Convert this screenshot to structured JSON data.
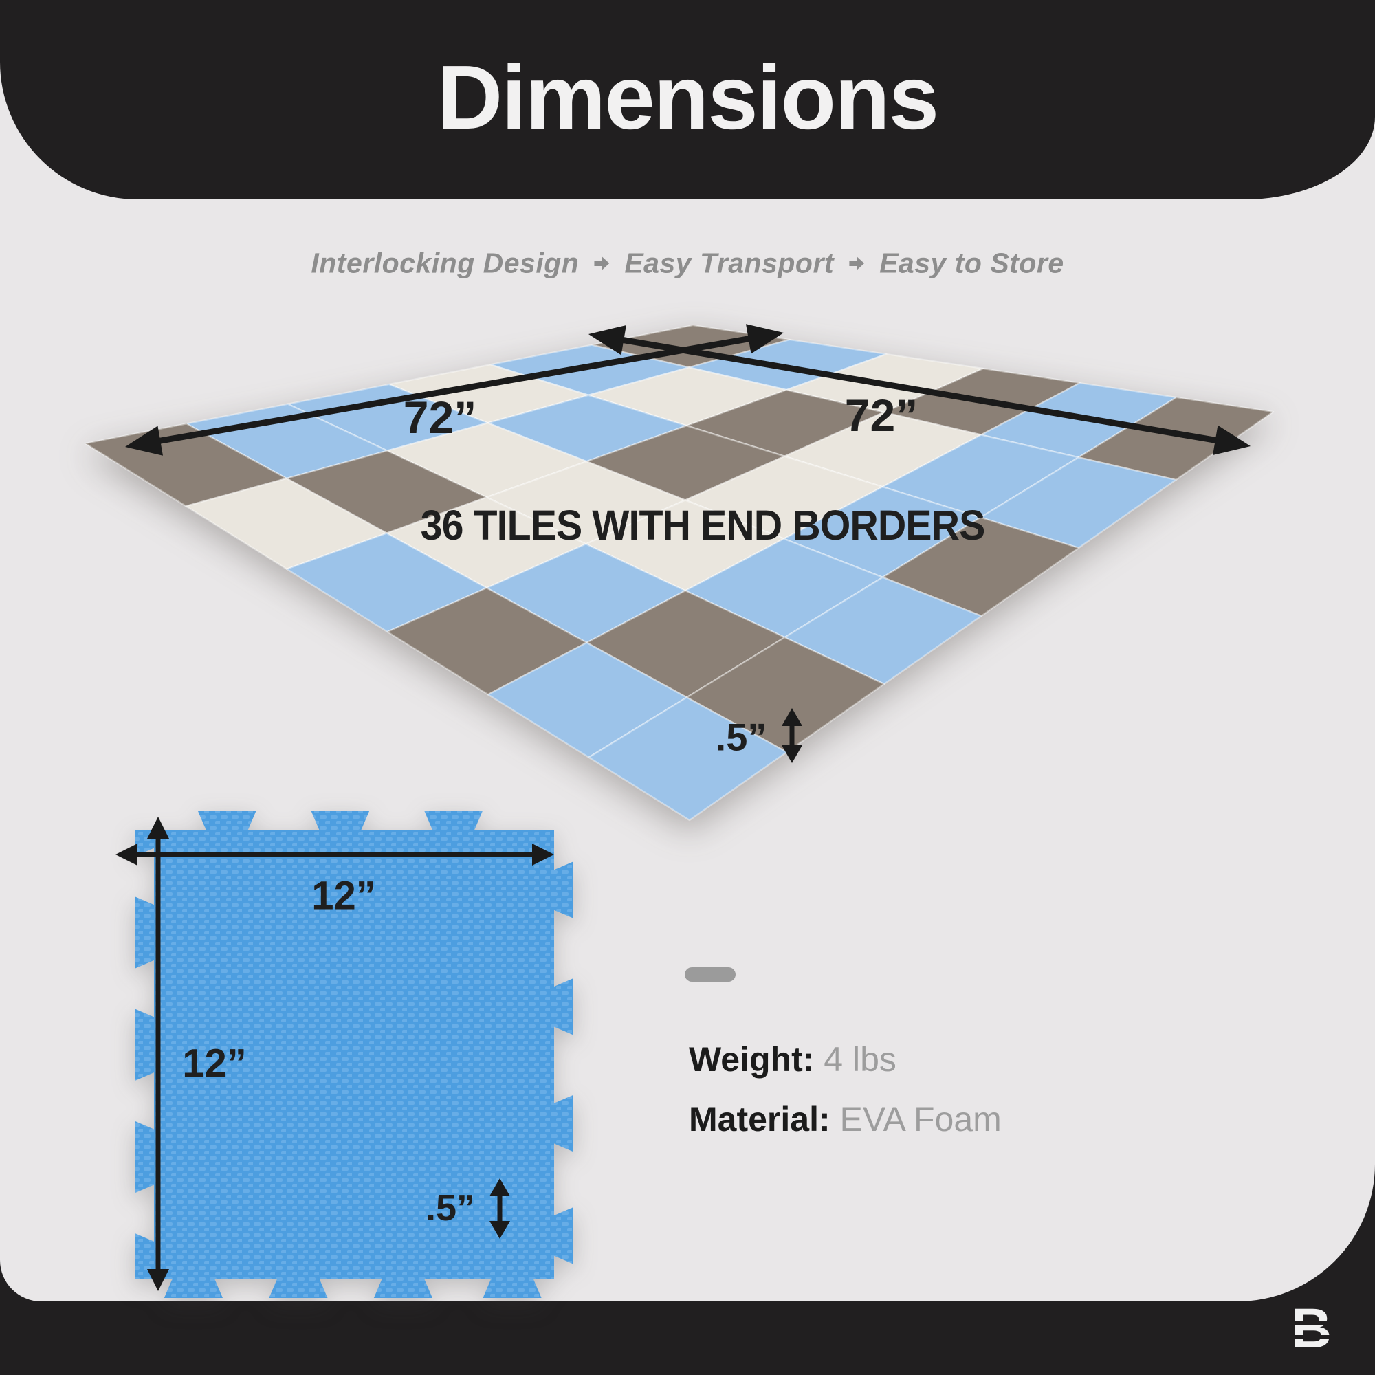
{
  "page": {
    "bg_dark": "#211f20",
    "bg_light": "#e9e7e8"
  },
  "header": {
    "title": "Dimensions"
  },
  "subtitle": {
    "items": [
      "Interlocking Design",
      "Easy Transport",
      "Easy to Store"
    ]
  },
  "mat": {
    "caption": "36 TILES WITH END BORDERS",
    "width_left": "72”",
    "width_right": "72”",
    "thickness": ".5”",
    "colors": {
      "blue": "#9cc3e9",
      "gray": "#8b8076",
      "white": "#eae6de",
      "seam": "rgba(255,255,255,0.4)"
    },
    "pattern": [
      [
        "G",
        "B",
        "W",
        "G",
        "B",
        "G"
      ],
      [
        "B",
        "W",
        "G",
        "W",
        "B",
        "B"
      ],
      [
        "W",
        "B",
        "G",
        "W",
        "B",
        "G"
      ],
      [
        "B",
        "W",
        "W",
        "W",
        "B",
        "B"
      ],
      [
        "B",
        "G",
        "W",
        "B",
        "G",
        "G"
      ],
      [
        "G",
        "W",
        "B",
        "G",
        "B",
        "B"
      ]
    ]
  },
  "tile": {
    "width": "12”",
    "height": "12”",
    "thickness": ".5”",
    "colors": {
      "base": "#4d9ee0",
      "weave": "#7cb9ec"
    }
  },
  "specs": {
    "weight_label": "Weight:",
    "weight_value": "4 lbs",
    "material_label": "Material:",
    "material_value": "EVA Foam"
  },
  "footer": {
    "logo": "B"
  },
  "arrows": {
    "color": "#1a1a1a"
  }
}
